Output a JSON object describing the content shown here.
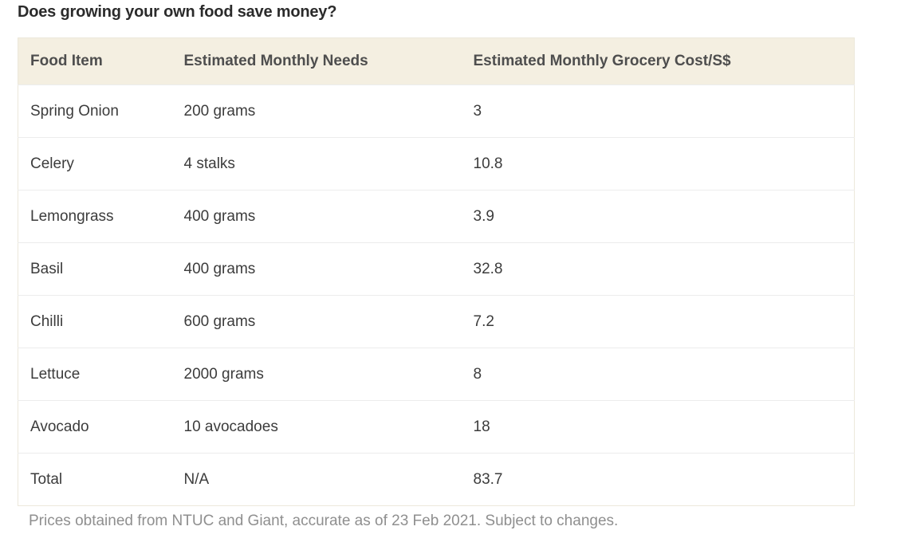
{
  "page": {
    "title": "Does growing your own food save money?",
    "footnote": "Prices obtained from NTUC and Giant, accurate as of 23 Feb 2021. Subject to changes."
  },
  "table": {
    "columns": [
      "Food Item",
      "Estimated Monthly Needs",
      "Estimated Monthly Grocery Cost/S$"
    ],
    "rows": [
      [
        "Spring Onion",
        "200 grams",
        "3"
      ],
      [
        "Celery",
        "4 stalks",
        "10.8"
      ],
      [
        "Lemongrass",
        "400 grams",
        "3.9"
      ],
      [
        "Basil",
        "400 grams",
        "32.8"
      ],
      [
        "Chilli",
        "600 grams",
        "7.2"
      ],
      [
        "Lettuce",
        "2000 grams",
        "8"
      ],
      [
        "Avocado",
        "10 avocadoes",
        "18"
      ],
      [
        "Total",
        "N/A",
        "83.7"
      ]
    ]
  },
  "colors": {
    "title_text": "#2b2b2b",
    "header_bg": "#f4efe1",
    "header_text": "#4e4e4e",
    "cell_text": "#3c3c3c",
    "row_divider": "#ececec",
    "table_border": "#ece8db",
    "footer_text": "#8f8f8f",
    "page_bg": "#ffffff"
  }
}
